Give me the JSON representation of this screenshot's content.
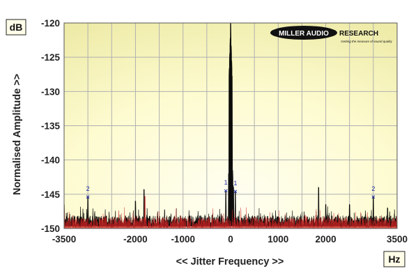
{
  "chart_data": {
    "type": "line",
    "title": "",
    "xlabel": "<< Jitter Frequency >>",
    "ylabel": "Normalised Amplitude >>",
    "x_unit_label": "Hz",
    "y_unit_label": "dB",
    "xlim": [
      -3500,
      3500
    ],
    "ylim": [
      -150,
      -120
    ],
    "x_ticks": [
      -3500,
      -2000,
      -1000,
      0,
      1000,
      2000,
      3500
    ],
    "x_gridlines": [
      -3000,
      -2500,
      -2000,
      -1500,
      -1000,
      -500,
      0,
      500,
      1000,
      1500,
      2000,
      2500,
      3000
    ],
    "y_ticks": [
      -120,
      -125,
      -130,
      -135,
      -140,
      -145,
      -150
    ],
    "grid": true,
    "series": [
      {
        "color": "#000000",
        "noise_floor": -149,
        "peaks": [
          {
            "x": -3500,
            "y": -146.5
          },
          {
            "x": -3000,
            "y": -145.5
          },
          {
            "x": -2000,
            "y": -146
          },
          {
            "x": -1820,
            "y": -144.3
          },
          {
            "x": -100,
            "y": -144.5
          },
          {
            "x": -40,
            "y": -142
          },
          {
            "x": 0,
            "y": -120
          },
          {
            "x": 20,
            "y": -136
          },
          {
            "x": 60,
            "y": -144
          },
          {
            "x": 100,
            "y": -144.6
          },
          {
            "x": 1850,
            "y": -144
          },
          {
            "x": 2000,
            "y": -146.5
          },
          {
            "x": 2500,
            "y": -146.5
          },
          {
            "x": 3000,
            "y": -145.5
          },
          {
            "x": 3300,
            "y": -147
          }
        ]
      },
      {
        "color": "#cc2222",
        "noise_floor": -149.3,
        "peaks": [
          {
            "x": -1800,
            "y": -145.3
          }
        ]
      }
    ],
    "markers": [
      {
        "label": "2",
        "x": -3000,
        "y": -145.4
      },
      {
        "label": "1",
        "x": -100,
        "y": -144.5
      },
      {
        "label": "1",
        "x": 100,
        "y": -144.6
      },
      {
        "label": "2",
        "x": 3000,
        "y": -145.4
      }
    ],
    "colors": {
      "plot_background": "#fffde0",
      "plot_background_edge": "#f1f0b0",
      "grid": "#b0b0b0",
      "trace": "#000000",
      "trace_secondary": "#cc2222",
      "marker": "#1d2a9e"
    }
  },
  "logo": {
    "text_left": "MILLER AUDIO",
    "text_right": "RESEARCH",
    "tagline": "Getting the measure of sound quality"
  }
}
